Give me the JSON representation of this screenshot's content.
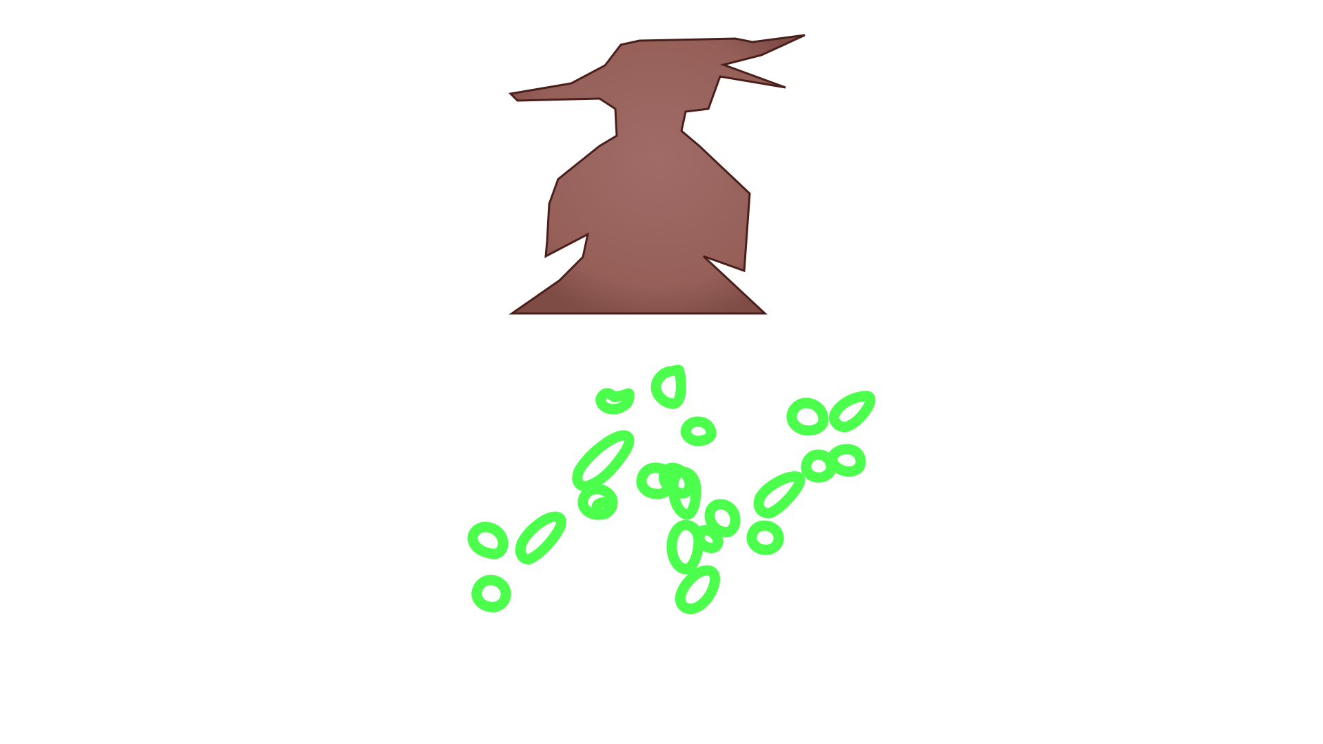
{
  "scene": {
    "background_color": "#ffffff",
    "character": {
      "kind": "wizard-silhouette",
      "fill_color": "#9a6560",
      "edge_color": "#4a1e1a"
    },
    "particles": {
      "kind": "green-drop-outlines",
      "stroke_color": "#4dff4d",
      "count": 22
    }
  }
}
